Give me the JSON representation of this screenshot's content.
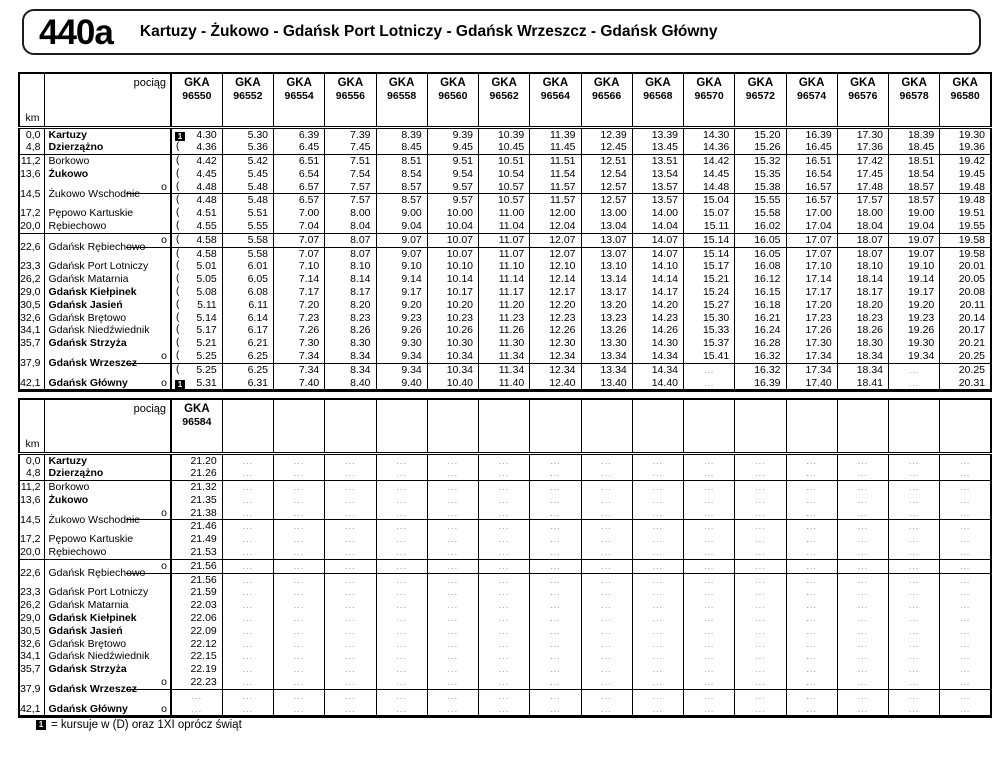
{
  "header": {
    "route_number": "440a",
    "route_title": "Kartuzy - Żukowo - Gdańsk Port Lotniczy - Gdańsk Wrzeszcz - Gdańsk Główny"
  },
  "table_labels": {
    "train_label": "pociąg",
    "km_label": "km",
    "stop_marker": "o"
  },
  "legend": {
    "symbol_glyph": "1",
    "text": "= kursuje w (D) oraz 1XI oprócz świąt"
  },
  "stations": [
    {
      "km": "0,0",
      "name": "Kartuzy",
      "bold": true
    },
    {
      "km": "4,8",
      "name": "Dzierzążno",
      "bold": true
    },
    {
      "km": "11,2",
      "name": "Borkowo",
      "sep_before": true
    },
    {
      "km": "13,6",
      "name": "Żukowo",
      "bold": true
    },
    {
      "km": "14,5",
      "name": "Żukowo Wschodnie",
      "two_row": true,
      "o": true
    },
    {
      "km": "17,2",
      "name": "Pępowo Kartuskie"
    },
    {
      "km": "20,0",
      "name": "Rębiechowo"
    },
    {
      "km": "22,6",
      "name": "Gdańsk Rębiechowo",
      "two_row": true,
      "o": true,
      "sep_before": true
    },
    {
      "km": "23,3",
      "name": "Gdańsk Port Lotniczy"
    },
    {
      "km": "26,2",
      "name": "Gdańsk Matarnia"
    },
    {
      "km": "29,0",
      "name": "Gdańsk Kiełpinek",
      "bold": true
    },
    {
      "km": "30,5",
      "name": "Gdańsk Jasień",
      "bold": true
    },
    {
      "km": "32,6",
      "name": "Gdańsk Brętowo"
    },
    {
      "km": "34,1",
      "name": "Gdańsk Niedźwiednik"
    },
    {
      "km": "35,7",
      "name": "Gdańsk Strzyża",
      "bold": true
    },
    {
      "km": "37,9",
      "name": "Gdańsk Wrzeszcz",
      "bold": true,
      "two_row": true,
      "o": true
    },
    {
      "km": "42,1",
      "name": "Gdańsk Główny",
      "bold": true,
      "o": true
    }
  ],
  "tables": [
    {
      "total_train_cols": 16,
      "trains": [
        {
          "operator": "GKA",
          "number": "96550"
        },
        {
          "operator": "GKA",
          "number": "96552"
        },
        {
          "operator": "GKA",
          "number": "96554"
        },
        {
          "operator": "GKA",
          "number": "96556"
        },
        {
          "operator": "GKA",
          "number": "96558"
        },
        {
          "operator": "GKA",
          "number": "96560"
        },
        {
          "operator": "GKA",
          "number": "96562"
        },
        {
          "operator": "GKA",
          "number": "96564"
        },
        {
          "operator": "GKA",
          "number": "96566"
        },
        {
          "operator": "GKA",
          "number": "96568"
        },
        {
          "operator": "GKA",
          "number": "96570"
        },
        {
          "operator": "GKA",
          "number": "96572"
        },
        {
          "operator": "GKA",
          "number": "96574"
        },
        {
          "operator": "GKA",
          "number": "96576"
        },
        {
          "operator": "GKA",
          "number": "96578"
        },
        {
          "operator": "GKA",
          "number": "96580"
        }
      ],
      "col1_symbols": [
        "1",
        "(",
        "(",
        "(",
        "(",
        "(",
        "(",
        "(",
        "(",
        "(",
        "(",
        "(",
        "(",
        "(",
        "(",
        "(",
        "(",
        "(",
        "(",
        "1"
      ],
      "rows": [
        [
          "4.30",
          "5.30",
          "6.39",
          "7.39",
          "8.39",
          "9.39",
          "10.39",
          "11.39",
          "12.39",
          "13.39",
          "14.30",
          "15.20",
          "16.39",
          "17.30",
          "18.39",
          "19.30"
        ],
        [
          "4.36",
          "5.36",
          "6.45",
          "7.45",
          "8.45",
          "9.45",
          "10.45",
          "11.45",
          "12.45",
          "13.45",
          "14.36",
          "15.26",
          "16.45",
          "17.36",
          "18.45",
          "19.36"
        ],
        [
          "4.42",
          "5.42",
          "6.51",
          "7.51",
          "8.51",
          "9.51",
          "10.51",
          "11.51",
          "12.51",
          "13.51",
          "14.42",
          "15.32",
          "16.51",
          "17.42",
          "18.51",
          "19.42"
        ],
        [
          "4.45",
          "5.45",
          "6.54",
          "7.54",
          "8.54",
          "9.54",
          "10.54",
          "11.54",
          "12.54",
          "13.54",
          "14.45",
          "15.35",
          "16.54",
          "17.45",
          "18.54",
          "19.45"
        ],
        {
          "arr": [
            "4.48",
            "5.48",
            "6.57",
            "7.57",
            "8.57",
            "9.57",
            "10.57",
            "11.57",
            "12.57",
            "13.57",
            "14.48",
            "15.38",
            "16.57",
            "17.48",
            "18.57",
            "19.48"
          ],
          "dep": [
            "4.48",
            "5.48",
            "6.57",
            "7.57",
            "8.57",
            "9.57",
            "10.57",
            "11.57",
            "12.57",
            "13.57",
            "15.04",
            "15.55",
            "16.57",
            "17.57",
            "18.57",
            "19.48"
          ]
        },
        [
          "4.51",
          "5.51",
          "7.00",
          "8.00",
          "9.00",
          "10.00",
          "11.00",
          "12.00",
          "13.00",
          "14.00",
          "15.07",
          "15.58",
          "17.00",
          "18.00",
          "19.00",
          "19.51"
        ],
        [
          "4.55",
          "5.55",
          "7.04",
          "8.04",
          "9.04",
          "10.04",
          "11.04",
          "12.04",
          "13.04",
          "14.04",
          "15.11",
          "16.02",
          "17.04",
          "18.04",
          "19.04",
          "19.55"
        ],
        {
          "arr": [
            "4.58",
            "5.58",
            "7.07",
            "8.07",
            "9.07",
            "10.07",
            "11.07",
            "12.07",
            "13.07",
            "14.07",
            "15.14",
            "16.05",
            "17.07",
            "18.07",
            "19.07",
            "19.58"
          ],
          "dep": [
            "4.58",
            "5.58",
            "7.07",
            "8.07",
            "9.07",
            "10.07",
            "11.07",
            "12.07",
            "13.07",
            "14.07",
            "15.14",
            "16.05",
            "17.07",
            "18.07",
            "19.07",
            "19.58"
          ]
        },
        [
          "5.01",
          "6.01",
          "7.10",
          "8.10",
          "9.10",
          "10.10",
          "11.10",
          "12.10",
          "13.10",
          "14.10",
          "15.17",
          "16.08",
          "17.10",
          "18.10",
          "19.10",
          "20.01"
        ],
        [
          "5.05",
          "6.05",
          "7.14",
          "8.14",
          "9.14",
          "10.14",
          "11.14",
          "12.14",
          "13.14",
          "14.14",
          "15.21",
          "16.12",
          "17.14",
          "18.14",
          "19.14",
          "20.05"
        ],
        [
          "5.08",
          "6.08",
          "7.17",
          "8.17",
          "9.17",
          "10.17",
          "11.17",
          "12.17",
          "13.17",
          "14.17",
          "15.24",
          "16.15",
          "17.17",
          "18.17",
          "19.17",
          "20.08"
        ],
        [
          "5.11",
          "6.11",
          "7.20",
          "8.20",
          "9.20",
          "10.20",
          "11.20",
          "12.20",
          "13.20",
          "14.20",
          "15.27",
          "16.18",
          "17.20",
          "18.20",
          "19.20",
          "20.11"
        ],
        [
          "5.14",
          "6.14",
          "7.23",
          "8.23",
          "9.23",
          "10.23",
          "11.23",
          "12.23",
          "13.23",
          "14.23",
          "15.30",
          "16.21",
          "17.23",
          "18.23",
          "19.23",
          "20.14"
        ],
        [
          "5.17",
          "6.17",
          "7.26",
          "8.26",
          "9.26",
          "10.26",
          "11.26",
          "12.26",
          "13.26",
          "14.26",
          "15.33",
          "16.24",
          "17.26",
          "18.26",
          "19.26",
          "20.17"
        ],
        [
          "5.21",
          "6.21",
          "7.30",
          "8.30",
          "9.30",
          "10.30",
          "11.30",
          "12.30",
          "13.30",
          "14.30",
          "15.37",
          "16.28",
          "17.30",
          "18.30",
          "19.30",
          "20.21"
        ],
        {
          "arr": [
            "5.25",
            "6.25",
            "7.34",
            "8.34",
            "9.34",
            "10.34",
            "11.34",
            "12.34",
            "13.34",
            "14.34",
            "15.41",
            "16.32",
            "17.34",
            "18.34",
            "19.34",
            "20.25"
          ],
          "dep": [
            "5.25",
            "6.25",
            "7.34",
            "8.34",
            "9.34",
            "10.34",
            "11.34",
            "12.34",
            "13.34",
            "14.34",
            "...",
            "16.32",
            "17.34",
            "18.34",
            "...",
            "20.25"
          ]
        },
        [
          "5.31",
          "6.31",
          "7.40",
          "8.40",
          "9.40",
          "10.40",
          "11.40",
          "12.40",
          "13.40",
          "14.40",
          "...",
          "16.39",
          "17.40",
          "18.41",
          "...",
          "20.31"
        ]
      ]
    },
    {
      "total_train_cols": 16,
      "trains": [
        {
          "operator": "GKA",
          "number": "96584"
        }
      ],
      "col1_symbols": null,
      "placeholder": "...",
      "rows": [
        [
          "21.20"
        ],
        [
          "21.26"
        ],
        [
          "21.32"
        ],
        [
          "21.35"
        ],
        {
          "arr": [
            "21.38"
          ],
          "dep": [
            "21.46"
          ]
        },
        [
          "21.49"
        ],
        [
          "21.53"
        ],
        {
          "arr": [
            "21.56"
          ],
          "dep": [
            "21.56"
          ]
        },
        [
          "21.59"
        ],
        [
          "22.03"
        ],
        [
          "22.06"
        ],
        [
          "22.09"
        ],
        [
          "22.12"
        ],
        [
          "22.15"
        ],
        [
          "22.19"
        ],
        {
          "arr": [
            "22.23"
          ],
          "dep": [
            "..."
          ]
        },
        [
          "..."
        ]
      ]
    }
  ]
}
